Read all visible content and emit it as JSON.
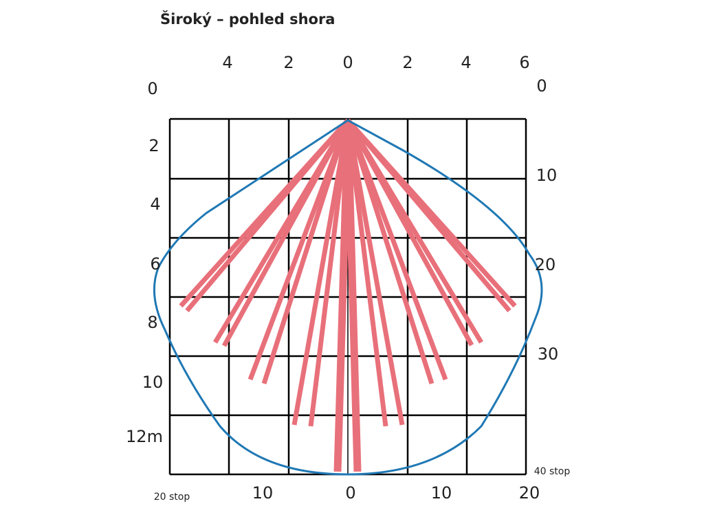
{
  "title": "Široký – pohled shora",
  "top_axis": [
    "4",
    "2",
    "0",
    "2",
    "4",
    "6"
  ],
  "left_axis": [
    "0",
    "2",
    "4",
    "6",
    "8",
    "10",
    "12m"
  ],
  "right_axis": [
    "0",
    "10",
    "20",
    "30",
    "40 stop"
  ],
  "bottom_axis": [
    "20 stop",
    "10",
    "0",
    "10",
    "20"
  ]
}
